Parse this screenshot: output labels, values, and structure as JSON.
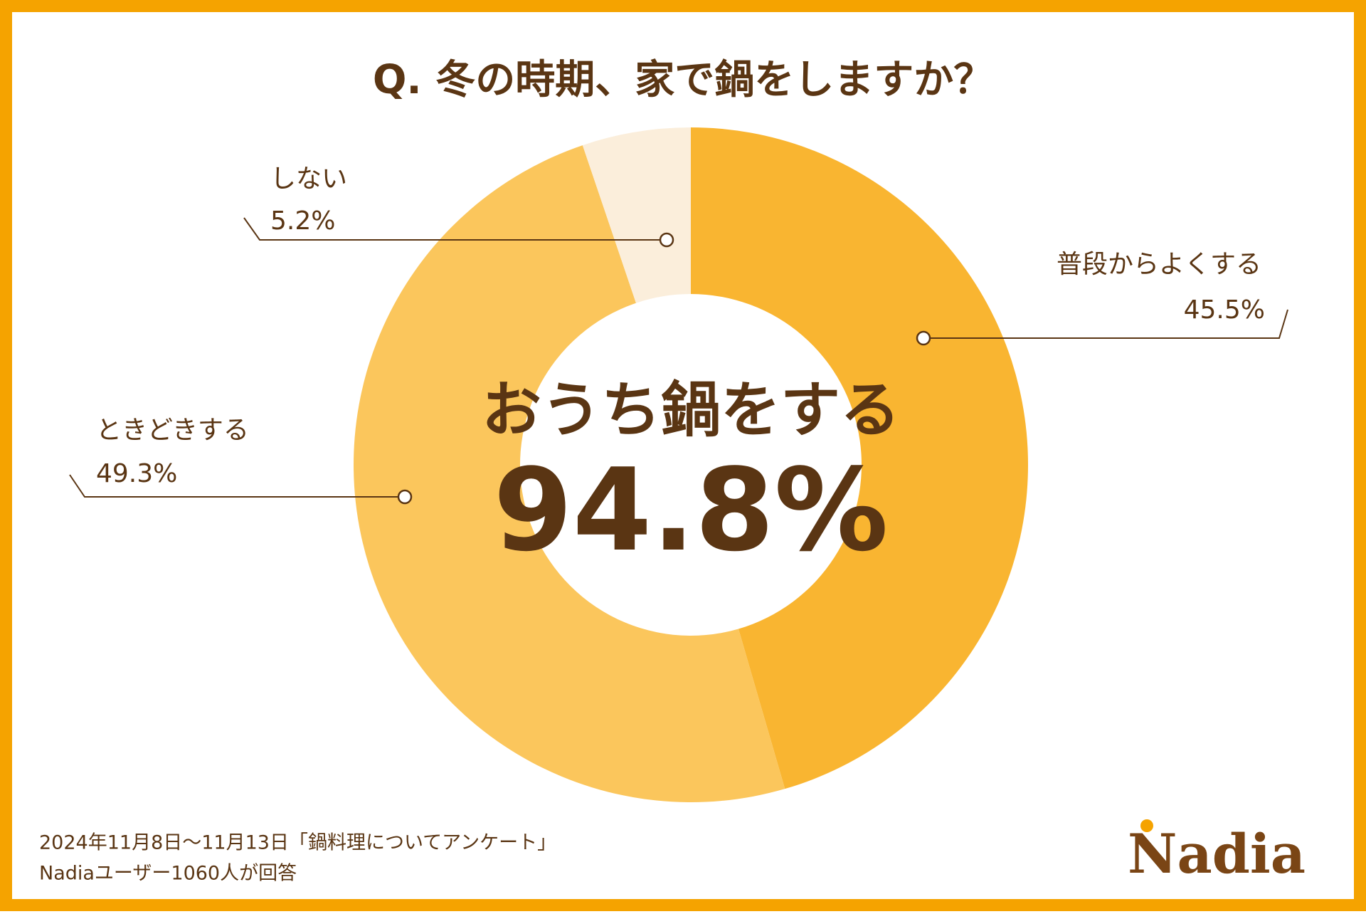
{
  "chart_data": {
    "type": "donut",
    "title": "Q. 冬の時期、家で鍋をしますか？",
    "categories": [
      "普段からよくする",
      "ときどきする",
      "しない"
    ],
    "values": [
      45.5,
      49.3,
      5.2
    ],
    "value_labels": [
      "45.5%",
      "49.3%",
      "5.2%"
    ],
    "colors": [
      "#f9b531",
      "#fbc65c",
      "#fbeedb"
    ],
    "center_label": "おうち鍋をする",
    "center_value": "94.8%"
  },
  "footer": {
    "lines": [
      "2024年11月8日～11月13日「鍋料理についてアンケート」",
      "Nadiaユーザー1060人が回答"
    ],
    "logo": "Nadia"
  }
}
